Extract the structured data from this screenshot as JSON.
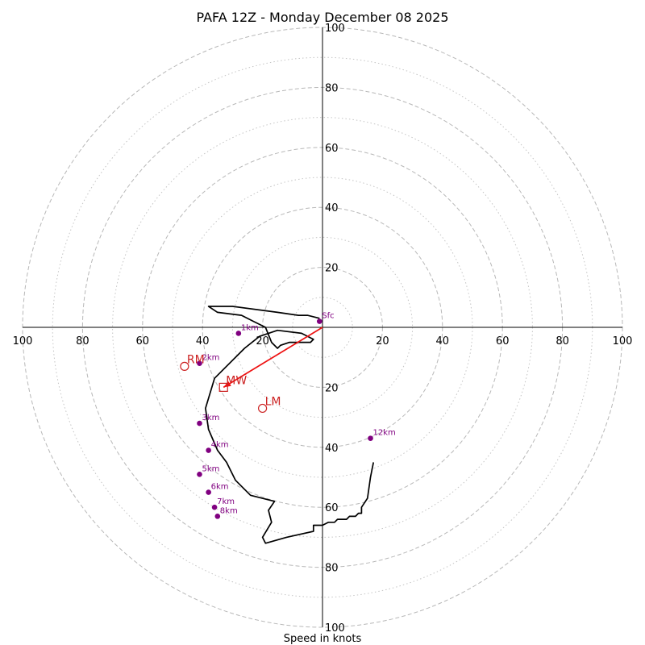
{
  "chart_data": {
    "type": "line",
    "title": "PAFA 12Z - Monday December 08 2025",
    "xlabel": "Speed in knots",
    "ylabel": "",
    "xlim": [
      -100,
      100
    ],
    "ylim": [
      -100,
      100
    ],
    "rings_major": [
      20,
      40,
      60,
      80,
      100
    ],
    "rings_minor": [
      10,
      30,
      50,
      70,
      90
    ],
    "x_ticks": [
      {
        "value": -100,
        "label": "100"
      },
      {
        "value": -80,
        "label": "80"
      },
      {
        "value": -60,
        "label": "60"
      },
      {
        "value": -40,
        "label": "40"
      },
      {
        "value": -20,
        "label": "20"
      },
      {
        "value": 20,
        "label": "20"
      },
      {
        "value": 40,
        "label": "40"
      },
      {
        "value": 60,
        "label": "60"
      },
      {
        "value": 80,
        "label": "80"
      },
      {
        "value": 100,
        "label": "100"
      }
    ],
    "y_ticks": [
      {
        "value": 100,
        "label": "100"
      },
      {
        "value": 80,
        "label": "80"
      },
      {
        "value": 60,
        "label": "60"
      },
      {
        "value": 40,
        "label": "40"
      },
      {
        "value": 20,
        "label": "20"
      },
      {
        "value": -20,
        "label": "20"
      },
      {
        "value": -40,
        "label": "40"
      },
      {
        "value": -60,
        "label": "60"
      },
      {
        "value": -80,
        "label": "80"
      },
      {
        "value": -100,
        "label": "100"
      }
    ],
    "hodograph": {
      "color": "#000000",
      "u": [
        -1,
        -5,
        -8,
        -15,
        -30,
        -38,
        -35,
        -27,
        -23,
        -19,
        -17,
        -15,
        -14,
        -11,
        -4,
        -3,
        -7,
        -15,
        -21,
        -26,
        -36,
        -39,
        -38,
        -35,
        -32,
        -29,
        -24,
        -16,
        -18,
        -17,
        -20,
        -19,
        -12,
        -3,
        -3,
        0,
        2,
        4,
        5,
        8,
        9,
        10,
        11,
        12,
        13,
        13,
        15,
        16,
        17
      ],
      "v": [
        3,
        4,
        4,
        5,
        7,
        7,
        5,
        4,
        2,
        0,
        -5,
        -7,
        -6,
        -5,
        -5,
        -4,
        -2,
        -1,
        -3,
        -7,
        -17,
        -27,
        -34,
        -41,
        -45,
        -51,
        -56,
        -58,
        -61,
        -65,
        -70,
        -72,
        -70,
        -68,
        -66,
        -66,
        -65,
        -65,
        -64,
        -64,
        -63,
        -63,
        -63,
        -62,
        -62,
        -60,
        -57,
        -50,
        -45
      ]
    },
    "height_markers": [
      {
        "label": "Sfc",
        "u": -1,
        "v": 2
      },
      {
        "label": "1km",
        "u": -28,
        "v": -2
      },
      {
        "label": "2km",
        "u": -41,
        "v": -12
      },
      {
        "label": "3km",
        "u": -41,
        "v": -32
      },
      {
        "label": "4km",
        "u": -38,
        "v": -41
      },
      {
        "label": "5km",
        "u": -41,
        "v": -49
      },
      {
        "label": "6km",
        "u": -38,
        "v": -55
      },
      {
        "label": "7km",
        "u": -36,
        "v": -60
      },
      {
        "label": "8km",
        "u": -35,
        "v": -63
      },
      {
        "label": "12km",
        "u": 16,
        "v": -37
      }
    ],
    "height_marker_color": "#800080",
    "storm_motion": [
      {
        "label": "RM",
        "u": -46,
        "v": -13,
        "symbol": "circle"
      },
      {
        "label": "MW",
        "u": -33,
        "v": -20,
        "symbol": "square"
      },
      {
        "label": "LM",
        "u": -20,
        "v": -27,
        "symbol": "circle"
      }
    ],
    "storm_motion_color": "#cc2222",
    "mean_wind_vector": {
      "from_u": 0,
      "from_v": 0,
      "to_u": -33,
      "to_v": -20,
      "color": "#ee1111"
    }
  }
}
